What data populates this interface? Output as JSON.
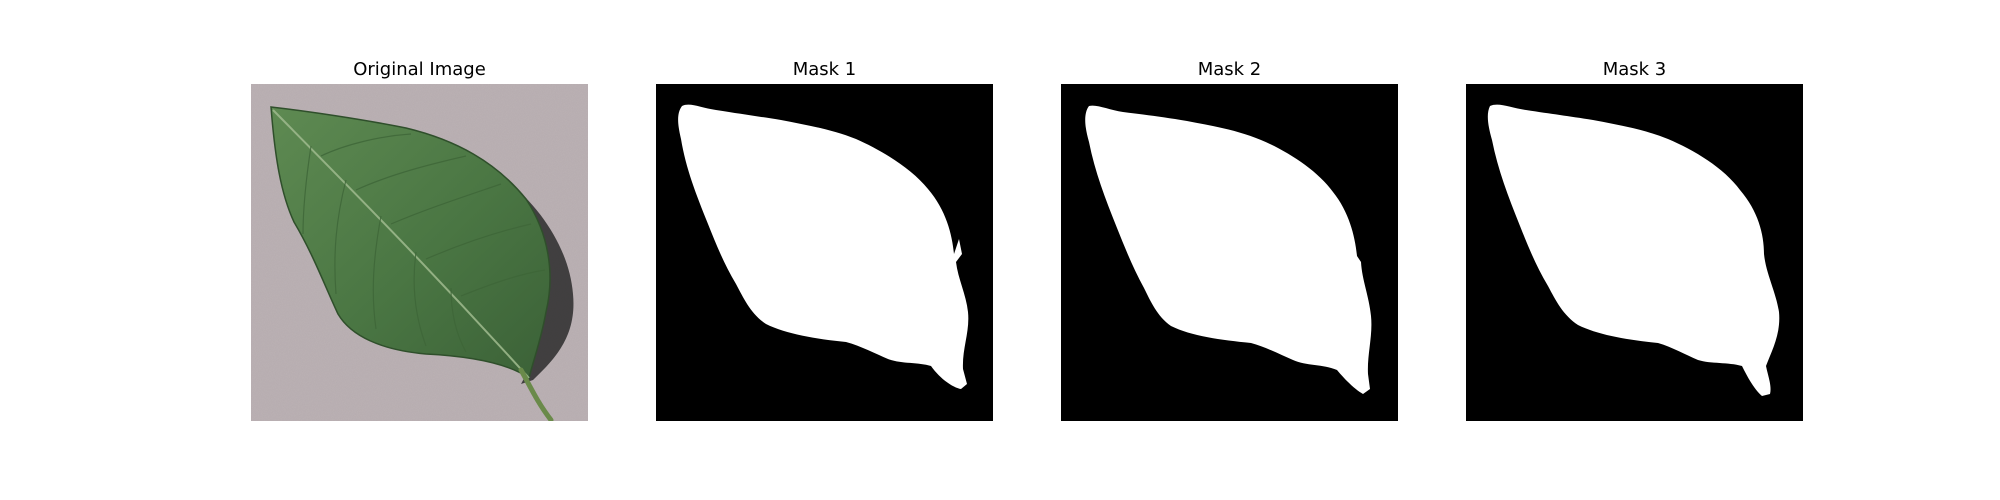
{
  "figure": {
    "panels": [
      {
        "title": "Original Image",
        "kind": "photo",
        "subject": "leaf-on-concrete"
      },
      {
        "title": "Mask 1",
        "kind": "mask",
        "subject": "leaf-mask"
      },
      {
        "title": "Mask 2",
        "kind": "mask",
        "subject": "leaf-mask"
      },
      {
        "title": "Mask 3",
        "kind": "mask",
        "subject": "leaf-mask"
      }
    ]
  },
  "colors": {
    "background": "#ffffff",
    "concrete": "#bdb3b6",
    "leaf_green": "#4f7a45",
    "leaf_dark": "#2f4f2b",
    "leaf_vein": "#9bb78b",
    "shadow": "#2c2b2c",
    "mask_bg": "#000000",
    "mask_fg": "#ffffff"
  }
}
